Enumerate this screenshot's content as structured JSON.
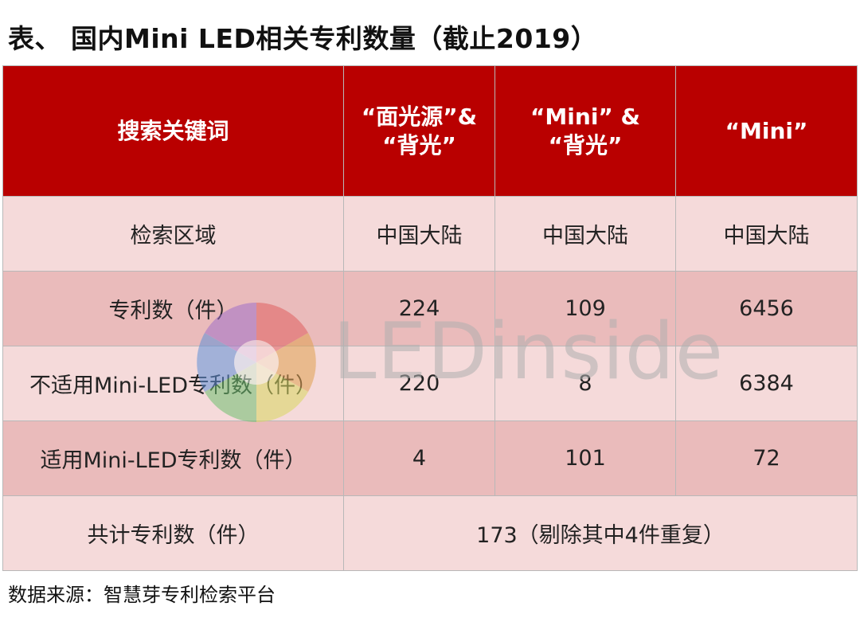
{
  "title": "表、 国内Mini LED相关专利数量（截止2019）",
  "table": {
    "header": {
      "col0": "搜索关键词",
      "col1_line1": "“面光源”&",
      "col1_line2": "“背光”",
      "col2_line1": "“Mini” &",
      "col2_line2": "“背光”",
      "col3": "“Mini”"
    },
    "rows": [
      {
        "label": "检索区域",
        "c1": "中国大陆",
        "c2": "中国大陆",
        "c3": "中国大陆"
      },
      {
        "label": "专利数（件）",
        "c1": "224",
        "c2": "109",
        "c3": "6456"
      },
      {
        "label": "不适用Mini-LED专利数（件）",
        "c1": "220",
        "c2": "8",
        "c3": "6384"
      },
      {
        "label": "适用Mini-LED专利数（件）",
        "c1": "4",
        "c2": "101",
        "c3": "72"
      }
    ],
    "total": {
      "label": "共计专利数（件）",
      "value": "173（剔除其中4件重复）"
    }
  },
  "watermark": {
    "text": "LEDinside",
    "icon": "ledinside-logo-icon"
  },
  "source": "数据来源：智慧芽专利检索平台",
  "colors": {
    "header_bg": "#b90000",
    "row_light": "#f5dada",
    "row_dark": "#eabbbb"
  }
}
